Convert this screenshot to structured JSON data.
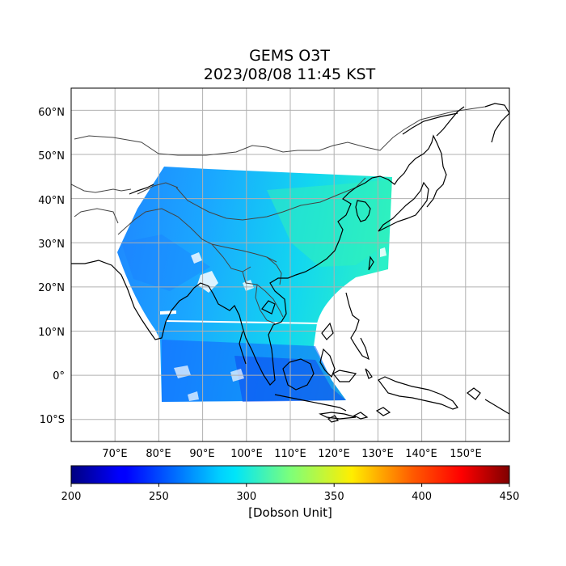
{
  "title": {
    "line1": "GEMS O3T",
    "line2": "2023/08/08 11:45 KST"
  },
  "map": {
    "lon_range": [
      60,
      160
    ],
    "lat_range": [
      -15,
      65
    ],
    "gridlines": true,
    "lon_ticks": [
      "70°E",
      "80°E",
      "90°E",
      "100°E",
      "110°E",
      "120°E",
      "130°E",
      "140°E",
      "150°E"
    ],
    "lat_ticks": [
      "60°N",
      "50°N",
      "40°N",
      "30°N",
      "20°N",
      "10°N",
      "0°",
      "10°S"
    ]
  },
  "colorbar": {
    "min": 200,
    "max": 450,
    "ticks": [
      "200",
      "250",
      "300",
      "350",
      "400",
      "450"
    ],
    "label": "[Dobson Unit]",
    "colormap": "jet"
  },
  "colors": {
    "border": "#444444",
    "coast": "#000000",
    "grid": "#b0b0b0"
  }
}
